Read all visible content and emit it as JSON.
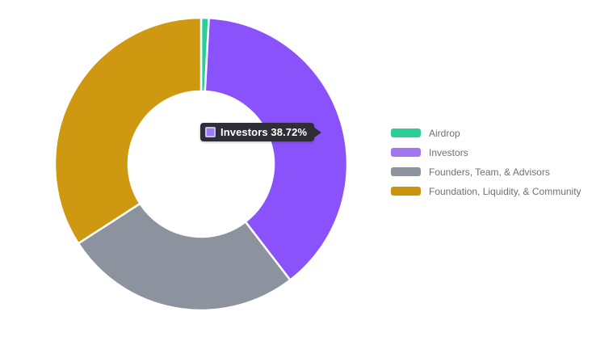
{
  "background": "#ffffff",
  "chart_data": {
    "type": "pie",
    "subtype": "donut",
    "title": "",
    "legend_position": "right",
    "direction": "clockwise",
    "start_angle_deg": 0,
    "inner_radius_ratio": 0.5,
    "categories": [
      "Airdrop",
      "Investors",
      "Founders, Team, & Advisors",
      "Foundation, Liquidity, & Community"
    ],
    "values": [
      0.85,
      38.72,
      26.3,
      34.13
    ],
    "colors": [
      "#2BCE98",
      "#8A52FA",
      "#8C939E",
      "#CE9810"
    ],
    "labeled_value": {
      "category": "Investors",
      "text": "38.72%"
    },
    "note": "Only the Investors value (38.72%) is labeled on screen via the tooltip; the other values are estimated from measured arc angles."
  },
  "tooltip": {
    "visible": true,
    "text": "Investors 38.72%",
    "background": "#2E2E36",
    "text_color": "#FFFFFF",
    "swatch_fill": "#9D7BF0",
    "swatch_border": "#C9BDF0"
  },
  "legend": {
    "text_color": "#6B7178",
    "items": [
      {
        "label": "Airdrop",
        "color": "#2DCD97"
      },
      {
        "label": "Investors",
        "color": "#A177F1"
      },
      {
        "label": "Founders, Team, & Advisors",
        "color": "#8C939E"
      },
      {
        "label": "Foundation, Liquidity, & Community",
        "color": "#C9930D"
      }
    ]
  }
}
